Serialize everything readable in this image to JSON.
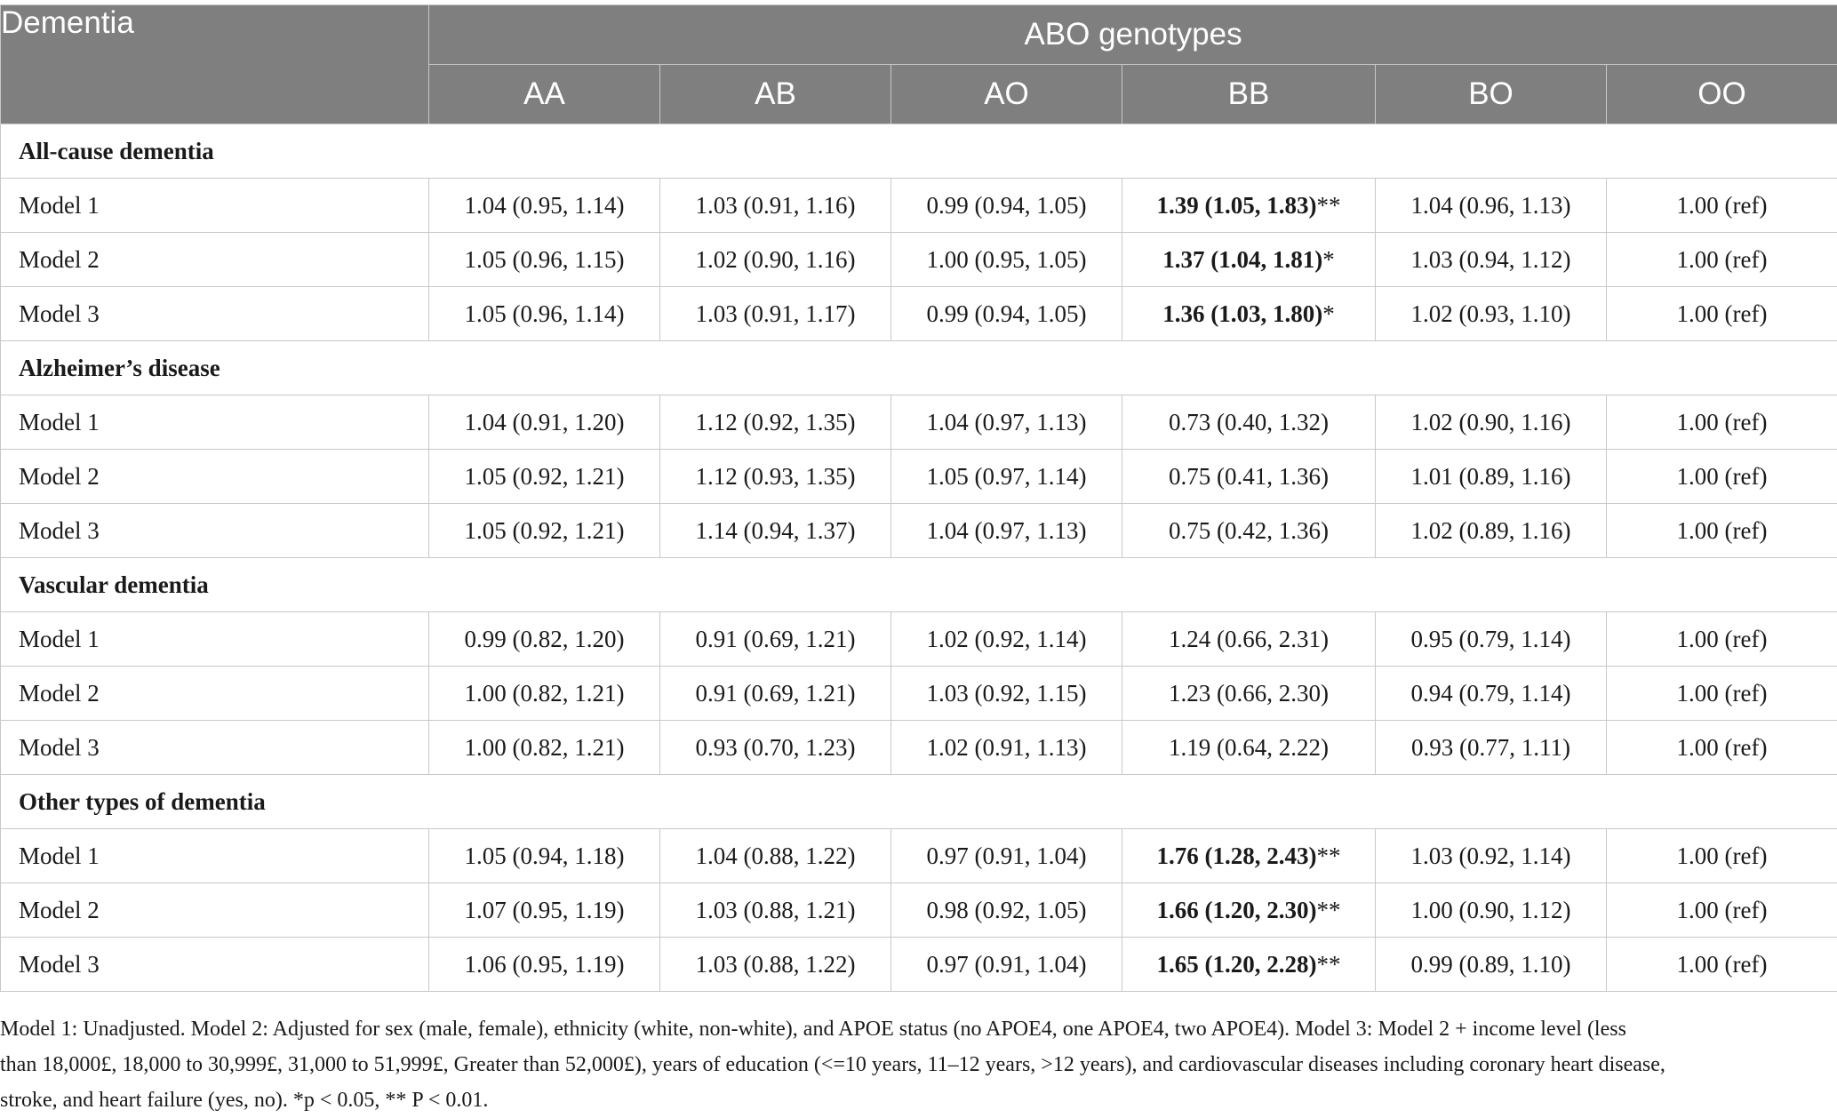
{
  "header": {
    "first_col": "Dementia",
    "group_label": "ABO genotypes",
    "genotypes": [
      "AA",
      "AB",
      "AO",
      "BB",
      "BO",
      "OO"
    ]
  },
  "groups": [
    {
      "name": "All-cause dementia",
      "rows": [
        {
          "model": "Model 1",
          "cells": [
            {
              "text": "1.04 (0.95, 1.14)"
            },
            {
              "text": "1.03 (0.91, 1.16)"
            },
            {
              "text": "0.99 (0.94, 1.05)"
            },
            {
              "text": "1.39 (1.05, 1.83)",
              "sig": "**"
            },
            {
              "text": "1.04 (0.96, 1.13)"
            },
            {
              "text": "1.00 (ref)"
            }
          ]
        },
        {
          "model": "Model 2",
          "cells": [
            {
              "text": "1.05 (0.96, 1.15)"
            },
            {
              "text": "1.02 (0.90, 1.16)"
            },
            {
              "text": "1.00 (0.95, 1.05)"
            },
            {
              "text": "1.37 (1.04, 1.81)",
              "sig": "*"
            },
            {
              "text": "1.03 (0.94, 1.12)"
            },
            {
              "text": "1.00 (ref)"
            }
          ]
        },
        {
          "model": "Model 3",
          "cells": [
            {
              "text": "1.05 (0.96, 1.14)"
            },
            {
              "text": "1.03 (0.91, 1.17)"
            },
            {
              "text": "0.99 (0.94, 1.05)"
            },
            {
              "text": "1.36 (1.03, 1.80)",
              "sig": "*"
            },
            {
              "text": "1.02 (0.93, 1.10)"
            },
            {
              "text": "1.00 (ref)"
            }
          ]
        }
      ]
    },
    {
      "name": "Alzheimer’s disease",
      "rows": [
        {
          "model": "Model 1",
          "cells": [
            {
              "text": "1.04 (0.91, 1.20)"
            },
            {
              "text": "1.12 (0.92, 1.35)"
            },
            {
              "text": "1.04 (0.97, 1.13)"
            },
            {
              "text": "0.73 (0.40, 1.32)"
            },
            {
              "text": "1.02 (0.90, 1.16)"
            },
            {
              "text": "1.00 (ref)"
            }
          ]
        },
        {
          "model": "Model 2",
          "cells": [
            {
              "text": "1.05 (0.92, 1.21)"
            },
            {
              "text": "1.12 (0.93, 1.35)"
            },
            {
              "text": "1.05 (0.97, 1.14)"
            },
            {
              "text": "0.75 (0.41, 1.36)"
            },
            {
              "text": "1.01 (0.89, 1.16)"
            },
            {
              "text": "1.00 (ref)"
            }
          ]
        },
        {
          "model": "Model 3",
          "cells": [
            {
              "text": "1.05 (0.92, 1.21)"
            },
            {
              "text": "1.14 (0.94, 1.37)"
            },
            {
              "text": "1.04 (0.97, 1.13)"
            },
            {
              "text": "0.75 (0.42, 1.36)"
            },
            {
              "text": "1.02 (0.89, 1.16)"
            },
            {
              "text": "1.00 (ref)"
            }
          ]
        }
      ]
    },
    {
      "name": "Vascular dementia",
      "rows": [
        {
          "model": "Model 1",
          "cells": [
            {
              "text": "0.99 (0.82, 1.20)"
            },
            {
              "text": "0.91 (0.69, 1.21)"
            },
            {
              "text": "1.02 (0.92, 1.14)"
            },
            {
              "text": "1.24 (0.66, 2.31)"
            },
            {
              "text": "0.95 (0.79, 1.14)"
            },
            {
              "text": "1.00 (ref)"
            }
          ]
        },
        {
          "model": "Model 2",
          "cells": [
            {
              "text": "1.00 (0.82, 1.21)"
            },
            {
              "text": "0.91 (0.69, 1.21)"
            },
            {
              "text": "1.03 (0.92, 1.15)"
            },
            {
              "text": "1.23 (0.66, 2.30)"
            },
            {
              "text": "0.94 (0.79, 1.14)"
            },
            {
              "text": "1.00 (ref)"
            }
          ]
        },
        {
          "model": "Model 3",
          "cells": [
            {
              "text": "1.00 (0.82, 1.21)"
            },
            {
              "text": "0.93 (0.70, 1.23)"
            },
            {
              "text": "1.02 (0.91, 1.13)"
            },
            {
              "text": "1.19 (0.64, 2.22)"
            },
            {
              "text": "0.93 (0.77, 1.11)"
            },
            {
              "text": "1.00 (ref)"
            }
          ]
        }
      ]
    },
    {
      "name": "Other types of dementia",
      "rows": [
        {
          "model": "Model 1",
          "cells": [
            {
              "text": "1.05 (0.94, 1.18)"
            },
            {
              "text": "1.04 (0.88, 1.22)"
            },
            {
              "text": "0.97 (0.91, 1.04)"
            },
            {
              "text": "1.76 (1.28, 2.43)",
              "sig": "**"
            },
            {
              "text": "1.03 (0.92, 1.14)"
            },
            {
              "text": "1.00 (ref)"
            }
          ]
        },
        {
          "model": "Model 2",
          "cells": [
            {
              "text": "1.07 (0.95, 1.19)"
            },
            {
              "text": "1.03 (0.88, 1.21)"
            },
            {
              "text": "0.98 (0.92, 1.05)"
            },
            {
              "text": "1.66 (1.20, 2.30)",
              "sig": "**"
            },
            {
              "text": "1.00 (0.90, 1.12)"
            },
            {
              "text": "1.00 (ref)"
            }
          ]
        },
        {
          "model": "Model 3",
          "cells": [
            {
              "text": "1.06 (0.95, 1.19)"
            },
            {
              "text": "1.03 (0.88, 1.22)"
            },
            {
              "text": "0.97 (0.91, 1.04)"
            },
            {
              "text": "1.65 (1.20, 2.28)",
              "sig": "**"
            },
            {
              "text": "0.99 (0.89, 1.10)"
            },
            {
              "text": "1.00 (ref)"
            }
          ]
        }
      ]
    }
  ],
  "footnote": {
    "line1": "Model 1: Unadjusted. Model 2: Adjusted for sex (male, female), ethnicity (white, non-white), and APOE status (no APOE4, one APOE4, two APOE4). Model 3: Model 2 + income level (less",
    "line2": "than 18,000£, 18,000 to 30,999£, 31,000 to 51,999£, Greater than 52,000£), years of education (<=10 years, 11–12 years, >12 years), and cardiovascular diseases including coronary heart disease,",
    "line3": "stroke, and heart failure (yes, no). *p < 0.05, ** P < 0.01."
  },
  "colors": {
    "header_bg": "#7f7f7f",
    "header_text": "#ffffff",
    "grid": "#c8c8c8"
  }
}
